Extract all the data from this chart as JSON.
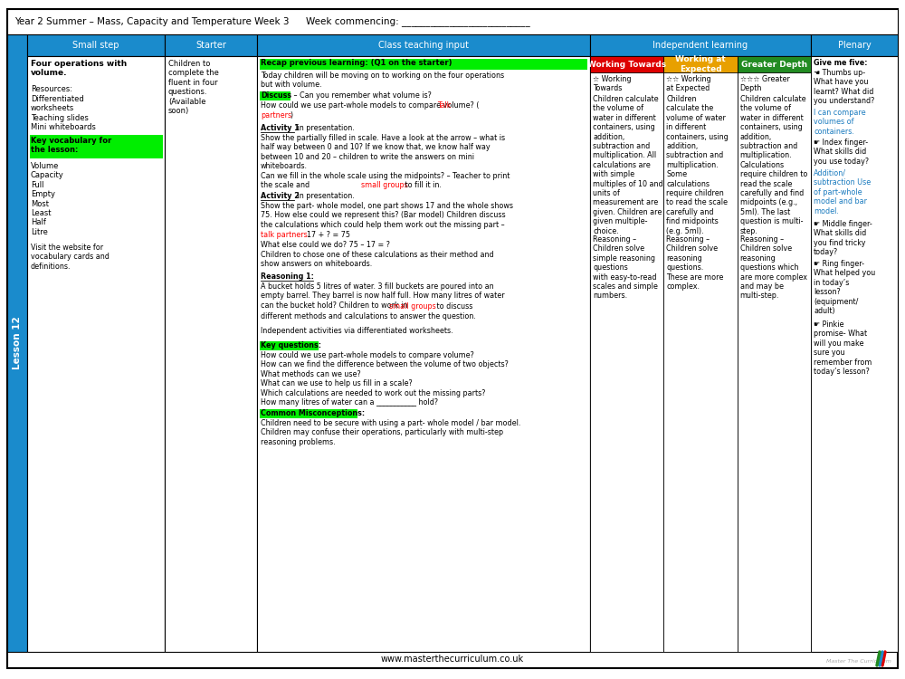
{
  "title": "Year 2 Summer – Mass, Capacity and Temperature Week 3",
  "week_commencing": "Week commencing: ___________________________",
  "header_bg": "#1a8bcc",
  "lesson_label": "Lesson 12",
  "small_step_title": "Four operations with\nvolume.",
  "small_step_resources": "Resources:",
  "small_step_res_items": "Differentiated\nworksheets\nTeaching slides\nMini whiteboards",
  "small_step_vocab_label": "Key vocabulary for\nthe lesson:",
  "small_step_vocab": "Volume\nCapacity\nFull\nEmpty\nMost\nLeast\nHalf\nLitre",
  "small_step_footer": "Visit the website for\nvocabulary cards and\ndefinitions.",
  "starter_text": "Children to\ncomplete the\nfluent in four\nquestions.\n(Available\nsoon)",
  "teaching_recap": "Recap previous learning: (Q1 on the starter)",
  "wt_stars": "☆ Working\nTowards",
  "wae_stars": "☆☆ Working\nat Expected",
  "gd_stars": "☆☆☆ Greater\nDepth",
  "wt_body": "Children calculate\nthe volume of\nwater in different\ncontainers, using\naddition,\nsubtraction and\nmultiplication. All\ncalculations are\nwith simple\nmultiples of 10 and\nunits of\nmeasurement are\ngiven. Children are\ngiven multiple-\nchoice.",
  "wt_reasoning": "Reasoning –\nChildren solve\nsimple reasoning\nquestions\nwith easy-to-read\nscales and simple\nnumbers.",
  "wae_body": "Children\ncalculate the\nvolume of water\nin different\ncontainers, using\naddition,\nsubtraction and\nmultiplication.\nSome\ncalculations\nrequire children\nto read the scale\ncarefully and\nfind midpoints\n(e.g. 5ml).",
  "wae_reasoning": "Reasoning –\nChildren solve\nreasoning\nquestions.\nThese are more\ncomplex.",
  "gd_body": "Children calculate\nthe volume of\nwater in different\ncontainers, using\naddition,\nsubtraction and\nmultiplication.\nCalculations\nrequire children to\nread the scale\ncarefully and find\nmidpoints (e.g.,\n5ml). The last\nquestion is multi-\nstep.",
  "gd_reasoning": "Reasoning –\nChildren solve\nreasoning\nquestions which\nare more complex\nand may be\nmulti-step.",
  "footer_text": "www.masterthecurriculum.co.uk",
  "working_towards_color": "#dd0000",
  "working_at_color": "#e8a000",
  "greater_depth_color": "#228B22",
  "highlight_green": "#00ee00",
  "highlight_yellow": "#ffff00",
  "blue_sidebar": "#1a7bbf",
  "header_blue": "#1a8bcc"
}
